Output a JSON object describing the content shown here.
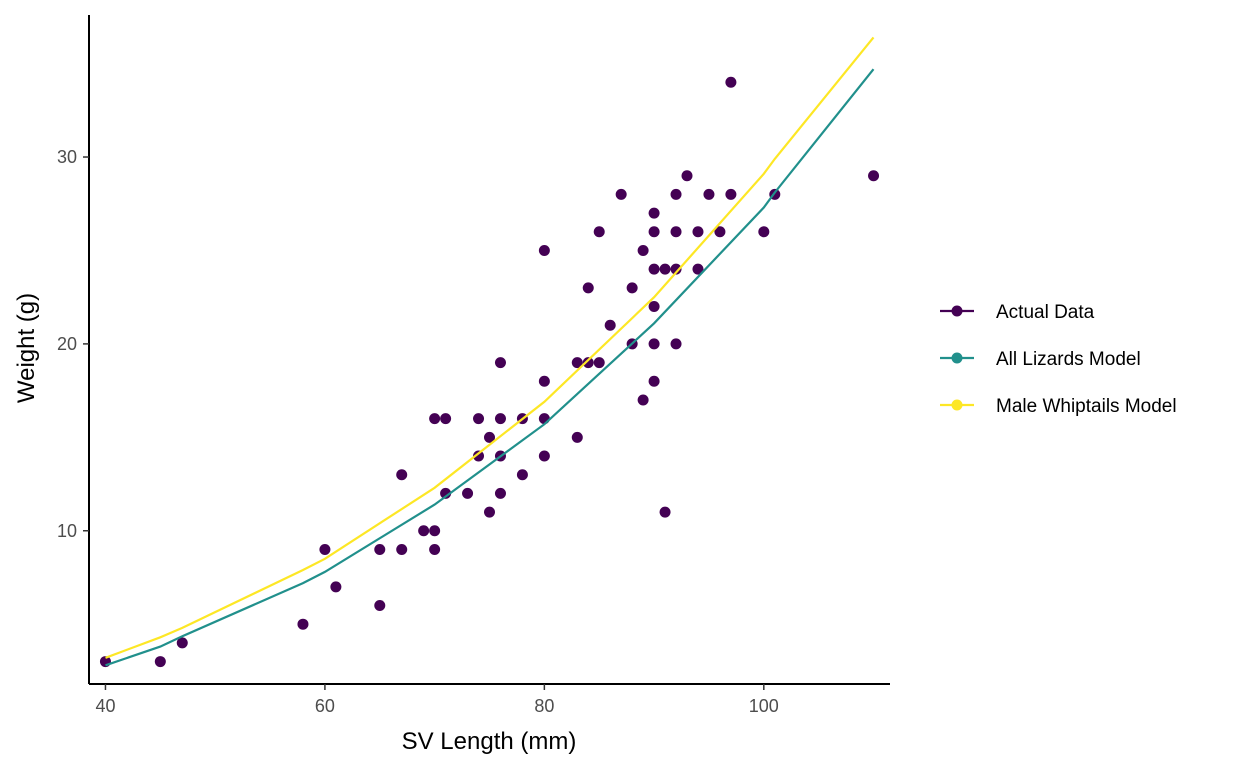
{
  "chart_data": {
    "type": "scatter",
    "xlabel": "SV Length (mm)",
    "ylabel": "Weight (g)",
    "xlim": [
      38.5,
      111.5
    ],
    "ylim": [
      1.8,
      37.6
    ],
    "x_ticks": [
      40,
      60,
      80,
      100
    ],
    "y_ticks": [
      10,
      20,
      30
    ],
    "grid": false,
    "legend_position": "right",
    "colors": {
      "actual": "#440154",
      "all_lizards": "#21908C",
      "male_whiptails": "#FDE725"
    },
    "legend": [
      {
        "key": "actual",
        "label": "Actual Data"
      },
      {
        "key": "all_lizards",
        "label": "All Lizards Model"
      },
      {
        "key": "male_whiptails",
        "label": "Male Whiptails Model"
      }
    ],
    "points": [
      [
        40,
        3
      ],
      [
        45,
        3
      ],
      [
        47,
        4
      ],
      [
        58,
        5
      ],
      [
        60,
        9
      ],
      [
        61,
        7
      ],
      [
        65,
        6
      ],
      [
        65,
        9
      ],
      [
        67,
        9
      ],
      [
        67,
        13
      ],
      [
        69,
        10
      ],
      [
        70,
        9
      ],
      [
        70,
        10
      ],
      [
        70,
        16
      ],
      [
        71,
        16
      ],
      [
        71,
        12
      ],
      [
        73,
        12
      ],
      [
        74,
        14
      ],
      [
        74,
        16
      ],
      [
        75,
        11
      ],
      [
        75,
        15
      ],
      [
        76,
        12
      ],
      [
        76,
        14
      ],
      [
        76,
        16
      ],
      [
        76,
        19
      ],
      [
        78,
        13
      ],
      [
        78,
        16
      ],
      [
        80,
        14
      ],
      [
        80,
        16
      ],
      [
        80,
        18
      ],
      [
        80,
        25
      ],
      [
        83,
        15
      ],
      [
        83,
        19
      ],
      [
        84,
        19
      ],
      [
        84,
        23
      ],
      [
        85,
        19
      ],
      [
        85,
        26
      ],
      [
        86,
        21
      ],
      [
        87,
        28
      ],
      [
        88,
        20
      ],
      [
        88,
        23
      ],
      [
        89,
        17
      ],
      [
        89,
        25
      ],
      [
        90,
        18
      ],
      [
        90,
        20
      ],
      [
        90,
        22
      ],
      [
        90,
        24
      ],
      [
        90,
        26
      ],
      [
        90,
        27
      ],
      [
        91,
        11
      ],
      [
        91,
        24
      ],
      [
        92,
        20
      ],
      [
        92,
        24
      ],
      [
        92,
        26
      ],
      [
        92,
        28
      ],
      [
        93,
        29
      ],
      [
        94,
        24
      ],
      [
        94,
        26
      ],
      [
        95,
        28
      ],
      [
        96,
        26
      ],
      [
        97,
        28
      ],
      [
        97,
        34
      ],
      [
        100,
        26
      ],
      [
        101,
        28
      ],
      [
        110,
        29
      ]
    ],
    "series": [
      {
        "name": "All Lizards Model",
        "key": "all_lizards",
        "x": [
          40,
          45,
          47,
          58,
          60,
          70,
          80,
          90,
          100,
          101,
          110
        ],
        "y": [
          2.8,
          3.8,
          4.35,
          7.2,
          7.8,
          11.4,
          15.7,
          21.1,
          27.3,
          28.1,
          34.7
        ]
      },
      {
        "name": "Male Whiptails Model",
        "key": "male_whiptails",
        "x": [
          40,
          45,
          47,
          58,
          60,
          70,
          80,
          90,
          100,
          101,
          110
        ],
        "y": [
          3.2,
          4.3,
          4.8,
          7.9,
          8.5,
          12.3,
          16.9,
          22.5,
          29.1,
          29.9,
          36.4
        ]
      }
    ]
  }
}
